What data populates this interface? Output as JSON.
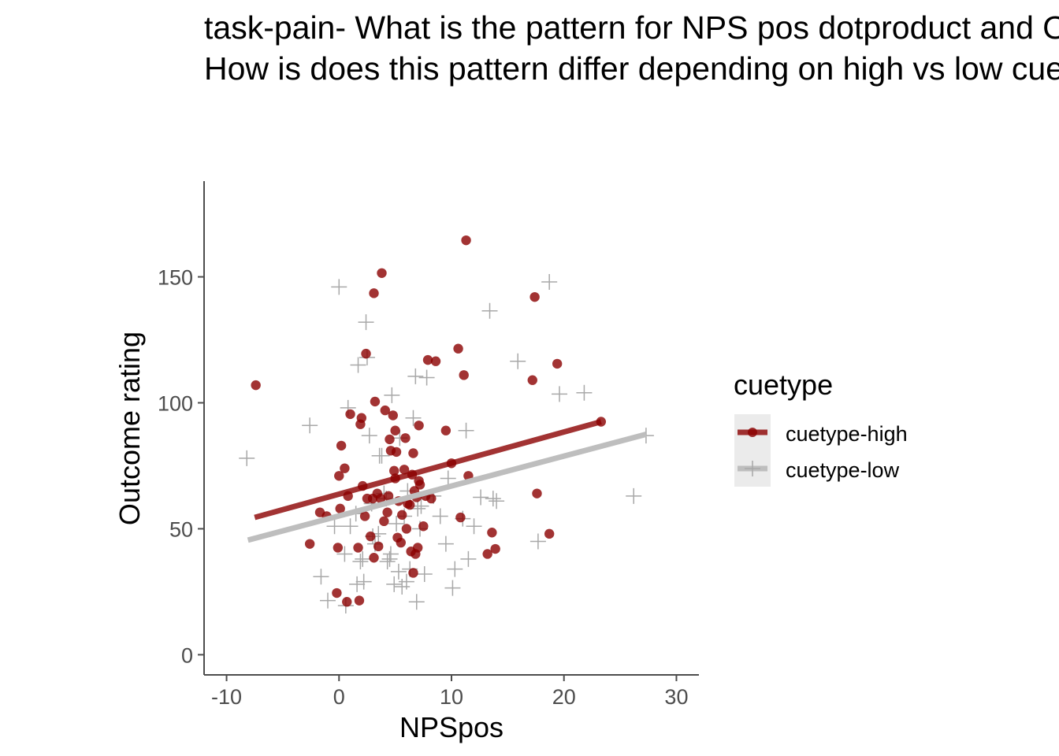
{
  "chart_data": {
    "type": "scatter",
    "title_lines": [
      "task-pain- What is the pattern for NPS pos dotproduct and Outcome ratings?",
      "How is does this pattern differ depending on high vs low cue?"
    ],
    "xlabel": "NPSpos",
    "ylabel": "Outcome rating",
    "xlim": [
      -12,
      32
    ],
    "ylim": [
      -8,
      188
    ],
    "x_ticks": [
      -10,
      0,
      10,
      20,
      30
    ],
    "y_ticks": [
      0,
      50,
      100,
      150
    ],
    "x_tick_labels": [
      "-10",
      "0",
      "10",
      "20",
      "30"
    ],
    "y_tick_labels": [
      "0",
      "50",
      "100",
      "150"
    ],
    "grid": false,
    "legend": {
      "title": "cuetype",
      "position": "right",
      "entries": [
        "cuetype-high",
        "cuetype-low"
      ]
    },
    "series": [
      {
        "name": "cuetype-high",
        "marker": "circle",
        "color": "#8b0000",
        "fit_line": {
          "x": [
            -7.5,
            23.3
          ],
          "y": [
            54.5,
            92.5
          ]
        },
        "points": [
          [
            -7.4,
            107
          ],
          [
            -2.6,
            44
          ],
          [
            -1.7,
            56.5
          ],
          [
            -1.1,
            55
          ],
          [
            -0.2,
            24.5
          ],
          [
            -0.1,
            42.5
          ],
          [
            0.0,
            71
          ],
          [
            0.1,
            58
          ],
          [
            0.2,
            83
          ],
          [
            0.5,
            74
          ],
          [
            0.7,
            21
          ],
          [
            0.8,
            63
          ],
          [
            1.0,
            95.5
          ],
          [
            1.8,
            21.5
          ],
          [
            1.7,
            42.5
          ],
          [
            1.9,
            91.5
          ],
          [
            2.0,
            94
          ],
          [
            2.1,
            67
          ],
          [
            2.3,
            55
          ],
          [
            2.4,
            119.5
          ],
          [
            2.5,
            62
          ],
          [
            2.8,
            47
          ],
          [
            3.0,
            62
          ],
          [
            3.1,
            38.5
          ],
          [
            3.1,
            143.5
          ],
          [
            3.2,
            100.5
          ],
          [
            3.4,
            64
          ],
          [
            3.5,
            43
          ],
          [
            3.7,
            62
          ],
          [
            3.8,
            151.5
          ],
          [
            4.0,
            53
          ],
          [
            4.1,
            97
          ],
          [
            4.3,
            56.5
          ],
          [
            4.4,
            63
          ],
          [
            4.5,
            85.5
          ],
          [
            4.6,
            81
          ],
          [
            4.8,
            95
          ],
          [
            4.9,
            73
          ],
          [
            5.0,
            89
          ],
          [
            5.0,
            70
          ],
          [
            5.1,
            80.5
          ],
          [
            5.2,
            46.5
          ],
          [
            5.3,
            61
          ],
          [
            5.5,
            44.5
          ],
          [
            5.6,
            55.5
          ],
          [
            5.8,
            73.5
          ],
          [
            5.9,
            86
          ],
          [
            6.0,
            50
          ],
          [
            6.1,
            60
          ],
          [
            6.3,
            59.5
          ],
          [
            6.4,
            41
          ],
          [
            6.5,
            71.5
          ],
          [
            6.6,
            80
          ],
          [
            6.6,
            32.5
          ],
          [
            6.7,
            65
          ],
          [
            6.8,
            40
          ],
          [
            6.9,
            62.5
          ],
          [
            7.0,
            42.5
          ],
          [
            7.1,
            91
          ],
          [
            7.1,
            69
          ],
          [
            7.2,
            67.5
          ],
          [
            7.5,
            51
          ],
          [
            7.7,
            63
          ],
          [
            7.9,
            117
          ],
          [
            8.2,
            62
          ],
          [
            8.6,
            116.5
          ],
          [
            9.5,
            89
          ],
          [
            10.0,
            76
          ],
          [
            10.6,
            121.5
          ],
          [
            10.8,
            54.5
          ],
          [
            11.1,
            111
          ],
          [
            11.3,
            164.5
          ],
          [
            11.5,
            71
          ],
          [
            13.2,
            40
          ],
          [
            13.6,
            48.5
          ],
          [
            13.9,
            42
          ],
          [
            17.2,
            109
          ],
          [
            17.4,
            142
          ],
          [
            17.6,
            64
          ],
          [
            18.7,
            48
          ],
          [
            19.4,
            115.5
          ],
          [
            23.3,
            92.5
          ]
        ]
      },
      {
        "name": "cuetype-low",
        "marker": "plus",
        "color": "#bebebe",
        "fit_line": {
          "x": [
            -8.1,
            27.3
          ],
          "y": [
            45.5,
            87.5
          ]
        },
        "points": [
          [
            -8.2,
            78
          ],
          [
            -2.6,
            91
          ],
          [
            -1.6,
            31
          ],
          [
            -1.0,
            21.5
          ],
          [
            -0.4,
            51
          ],
          [
            0.0,
            146
          ],
          [
            0.5,
            40
          ],
          [
            0.6,
            19.5
          ],
          [
            0.8,
            98
          ],
          [
            1.0,
            51
          ],
          [
            1.5,
            56
          ],
          [
            1.6,
            28
          ],
          [
            1.7,
            115
          ],
          [
            1.9,
            37
          ],
          [
            2.1,
            38
          ],
          [
            2.2,
            29
          ],
          [
            2.4,
            132
          ],
          [
            2.5,
            118
          ],
          [
            2.7,
            87
          ],
          [
            2.9,
            60
          ],
          [
            3.0,
            47
          ],
          [
            3.2,
            44
          ],
          [
            3.5,
            48
          ],
          [
            3.6,
            79
          ],
          [
            3.8,
            79
          ],
          [
            4.0,
            64
          ],
          [
            4.2,
            62
          ],
          [
            4.3,
            37
          ],
          [
            4.5,
            38
          ],
          [
            4.6,
            40
          ],
          [
            4.7,
            103
          ],
          [
            4.9,
            28
          ],
          [
            5.1,
            52
          ],
          [
            5.3,
            33
          ],
          [
            5.4,
            86
          ],
          [
            5.6,
            27
          ],
          [
            5.8,
            55
          ],
          [
            6.0,
            29
          ],
          [
            6.1,
            65
          ],
          [
            6.3,
            34
          ],
          [
            6.6,
            94
          ],
          [
            6.8,
            110.5
          ],
          [
            6.9,
            21
          ],
          [
            7.0,
            58
          ],
          [
            7.2,
            50
          ],
          [
            7.3,
            59
          ],
          [
            7.6,
            32
          ],
          [
            7.8,
            110
          ],
          [
            8.4,
            63
          ],
          [
            9.0,
            55
          ],
          [
            9.5,
            44
          ],
          [
            9.7,
            70
          ],
          [
            10.1,
            26.5
          ],
          [
            10.3,
            34
          ],
          [
            11.0,
            54
          ],
          [
            11.3,
            89
          ],
          [
            11.5,
            38
          ],
          [
            12.0,
            51
          ],
          [
            12.6,
            62.5
          ],
          [
            13.4,
            136.5
          ],
          [
            13.7,
            62
          ],
          [
            14.0,
            61
          ],
          [
            15.9,
            116.5
          ],
          [
            17.7,
            45
          ],
          [
            18.7,
            148
          ],
          [
            19.6,
            103.5
          ],
          [
            21.8,
            104
          ],
          [
            26.2,
            63
          ],
          [
            27.3,
            87
          ]
        ]
      }
    ]
  }
}
